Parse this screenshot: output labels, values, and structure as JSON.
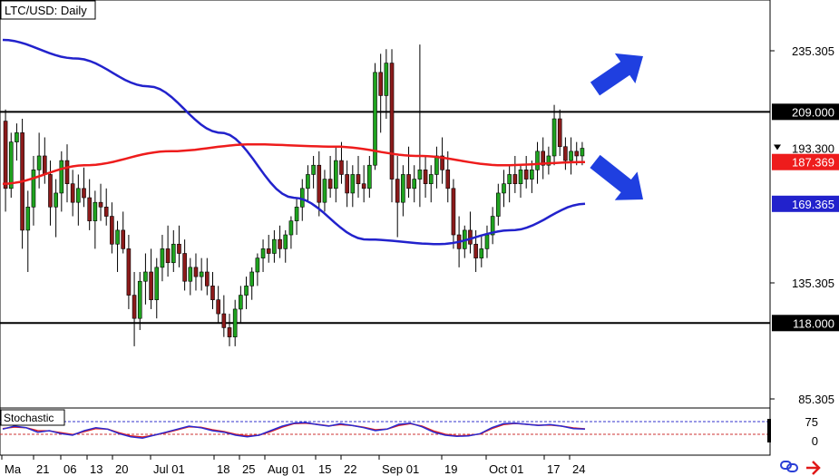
{
  "chart_data": {
    "type": "candlestick",
    "title": "LTC/USD: Daily",
    "y_ticks": [
      235.305,
      135.305,
      85.305
    ],
    "ylim": [
      72,
      258
    ],
    "x_ticks": [
      "Ma",
      "21",
      "06",
      "13",
      "20",
      "Jul 01",
      "18",
      "25",
      "Aug 01",
      "15",
      "22",
      "Sep 01",
      "19",
      "Oct 01",
      "17",
      "24"
    ],
    "levels": [
      {
        "label": "209.000",
        "value": 209.0
      },
      {
        "label": "118.000",
        "value": 118.0
      }
    ],
    "current_price_label": "193.300",
    "ma_red_label": "187.369",
    "ma_blue_label": "169.365",
    "ma_red_color": "#ee1c1c",
    "ma_blue_color": "#2222cc",
    "bull_color": "#1fa31f",
    "bear_color": "#8b1a1a",
    "arrow_color": "#1f3fe0",
    "indicator": {
      "name": "Stochastic",
      "levels": [
        "75",
        "0"
      ],
      "k_color": "#2a2ad0",
      "d_color": "#e02020"
    },
    "candles": [
      [
        205,
        210,
        166,
        176
      ],
      [
        176,
        200,
        172,
        196
      ],
      [
        196,
        204,
        188,
        200
      ],
      [
        200,
        206,
        150,
        158
      ],
      [
        158,
        175,
        140,
        168
      ],
      [
        168,
        190,
        160,
        184
      ],
      [
        184,
        200,
        176,
        190
      ],
      [
        190,
        198,
        178,
        182
      ],
      [
        182,
        188,
        160,
        168
      ],
      [
        168,
        180,
        155,
        174
      ],
      [
        174,
        192,
        166,
        188
      ],
      [
        188,
        195,
        170,
        178
      ],
      [
        178,
        184,
        164,
        170
      ],
      [
        170,
        182,
        160,
        176
      ],
      [
        176,
        185,
        168,
        172
      ],
      [
        172,
        180,
        158,
        162
      ],
      [
        162,
        175,
        150,
        170
      ],
      [
        170,
        178,
        162,
        168
      ],
      [
        168,
        176,
        160,
        164
      ],
      [
        164,
        170,
        148,
        152
      ],
      [
        152,
        162,
        140,
        158
      ],
      [
        158,
        166,
        148,
        150
      ],
      [
        150,
        156,
        124,
        130
      ],
      [
        130,
        140,
        108,
        120
      ],
      [
        120,
        140,
        115,
        136
      ],
      [
        136,
        148,
        126,
        140
      ],
      [
        140,
        150,
        124,
        128
      ],
      [
        128,
        146,
        120,
        142
      ],
      [
        142,
        156,
        136,
        150
      ],
      [
        150,
        160,
        138,
        144
      ],
      [
        144,
        158,
        140,
        152
      ],
      [
        152,
        160,
        142,
        148
      ],
      [
        148,
        154,
        132,
        136
      ],
      [
        136,
        146,
        130,
        142
      ],
      [
        142,
        148,
        132,
        138
      ],
      [
        138,
        146,
        132,
        140
      ],
      [
        140,
        146,
        130,
        134
      ],
      [
        134,
        140,
        124,
        128
      ],
      [
        128,
        134,
        118,
        122
      ],
      [
        122,
        130,
        112,
        116
      ],
      [
        116,
        122,
        108,
        112
      ],
      [
        112,
        128,
        108,
        124
      ],
      [
        124,
        134,
        118,
        130
      ],
      [
        130,
        138,
        124,
        134
      ],
      [
        134,
        142,
        128,
        140
      ],
      [
        140,
        148,
        134,
        146
      ],
      [
        146,
        154,
        140,
        150
      ],
      [
        150,
        156,
        144,
        148
      ],
      [
        148,
        158,
        144,
        154
      ],
      [
        154,
        160,
        146,
        150
      ],
      [
        150,
        158,
        144,
        156
      ],
      [
        156,
        164,
        150,
        162
      ],
      [
        162,
        172,
        156,
        168
      ],
      [
        168,
        180,
        162,
        176
      ],
      [
        176,
        186,
        170,
        182
      ],
      [
        182,
        190,
        176,
        186
      ],
      [
        186,
        192,
        164,
        170
      ],
      [
        170,
        184,
        166,
        180
      ],
      [
        180,
        190,
        172,
        176
      ],
      [
        176,
        194,
        170,
        188
      ],
      [
        188,
        196,
        178,
        182
      ],
      [
        182,
        188,
        168,
        174
      ],
      [
        174,
        186,
        168,
        182
      ],
      [
        182,
        190,
        172,
        178
      ],
      [
        178,
        186,
        170,
        176
      ],
      [
        176,
        190,
        172,
        186
      ],
      [
        186,
        230,
        184,
        226
      ],
      [
        226,
        234,
        200,
        216
      ],
      [
        216,
        236,
        206,
        230
      ],
      [
        230,
        236,
        170,
        180
      ],
      [
        180,
        190,
        155,
        170
      ],
      [
        170,
        186,
        164,
        182
      ],
      [
        182,
        194,
        172,
        176
      ],
      [
        176,
        186,
        170,
        180
      ],
      [
        180,
        238,
        168,
        184
      ],
      [
        184,
        190,
        172,
        178
      ],
      [
        178,
        186,
        170,
        182
      ],
      [
        182,
        194,
        176,
        190
      ],
      [
        190,
        198,
        178,
        184
      ],
      [
        184,
        192,
        170,
        176
      ],
      [
        176,
        180,
        150,
        156
      ],
      [
        156,
        164,
        142,
        150
      ],
      [
        150,
        160,
        146,
        158
      ],
      [
        158,
        166,
        148,
        152
      ],
      [
        152,
        158,
        140,
        146
      ],
      [
        146,
        156,
        142,
        150
      ],
      [
        150,
        160,
        146,
        156
      ],
      [
        156,
        168,
        152,
        164
      ],
      [
        164,
        178,
        160,
        174
      ],
      [
        174,
        184,
        168,
        178
      ],
      [
        178,
        186,
        170,
        182
      ],
      [
        182,
        190,
        174,
        178
      ],
      [
        178,
        186,
        172,
        184
      ],
      [
        184,
        190,
        176,
        180
      ],
      [
        180,
        188,
        174,
        184
      ],
      [
        184,
        196,
        178,
        192
      ],
      [
        192,
        198,
        180,
        186
      ],
      [
        186,
        194,
        182,
        190
      ],
      [
        190,
        212,
        186,
        206
      ],
      [
        206,
        210,
        190,
        194
      ],
      [
        194,
        198,
        184,
        188
      ],
      [
        188,
        198,
        182,
        192
      ],
      [
        192,
        196,
        186,
        190
      ],
      [
        190,
        196,
        186,
        193.3
      ]
    ],
    "ma_red": [
      178,
      186,
      192,
      195,
      194,
      190,
      186,
      187.369
    ],
    "ma_blue": [
      240,
      232,
      220,
      200,
      172,
      154,
      152,
      158,
      169.365
    ],
    "stoch_k": [
      50,
      60,
      55,
      40,
      45,
      35,
      30,
      45,
      55,
      50,
      35,
      25,
      20,
      30,
      40,
      50,
      60,
      55,
      45,
      40,
      30,
      25,
      30,
      45,
      60,
      70,
      72,
      65,
      60,
      68,
      62,
      55,
      45,
      50,
      66,
      70,
      58,
      40,
      30,
      26,
      28,
      35,
      55,
      68,
      70,
      66,
      62,
      65,
      60,
      52,
      50
    ],
    "stoch_d": [
      52,
      57,
      55,
      45,
      44,
      38,
      32,
      42,
      52,
      50,
      38,
      28,
      24,
      30,
      38,
      48,
      58,
      56,
      48,
      42,
      33,
      28,
      30,
      42,
      57,
      68,
      70,
      66,
      61,
      65,
      62,
      56,
      48,
      50,
      62,
      68,
      60,
      44,
      33,
      28,
      29,
      34,
      52,
      65,
      69,
      66,
      63,
      64,
      60,
      54,
      51
    ]
  },
  "toolbar": {
    "link_icon": "link-icon",
    "arrow_icon": "expand-arrow-icon"
  }
}
